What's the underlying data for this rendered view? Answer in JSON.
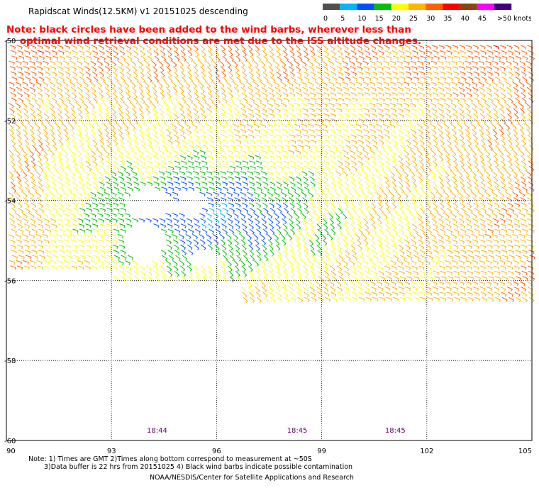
{
  "title": "Rapidscat Winds(12.5KM) v1 20151025 descending",
  "note_line1": "Note: black circles have been added to the wind barbs, wherever less than",
  "note_line2": "optimal wind retrieval conditions are met due to the ISS altitude changes.",
  "colorbar": {
    "labels": [
      "0",
      "5",
      "10",
      "15",
      "20",
      "25",
      "30",
      "35",
      "40",
      "45",
      ">50 knots"
    ],
    "colors": [
      "#505050",
      "#00b4ff",
      "#0050ff",
      "#00c000",
      "#ffff00",
      "#ffb400",
      "#ff6000",
      "#ff0000",
      "#8b4513",
      "#ff00ff",
      "#400080"
    ]
  },
  "map": {
    "lon_ticks": [
      "90",
      "93",
      "96",
      "99",
      "102",
      "105"
    ],
    "lat_ticks": [
      "-50",
      "-52",
      "-54",
      "-56",
      "-58",
      "-60"
    ],
    "time_labels": [
      {
        "text": "18:44",
        "lon": 94.3
      },
      {
        "text": "18:45",
        "lon": 98.3
      },
      {
        "text": "18:45",
        "lon": 101.1
      }
    ]
  },
  "footnote_line1": "Note: 1) Times are GMT 2)Times along bottom correspond to measurement at ~50S",
  "footnote_line2": "3)Data buffer is 22 hrs from 20151025 4) Black wind barbs indicate possible contamination",
  "credit": "NOAA/NESDIS/Center for Satellite Applications and Research"
}
